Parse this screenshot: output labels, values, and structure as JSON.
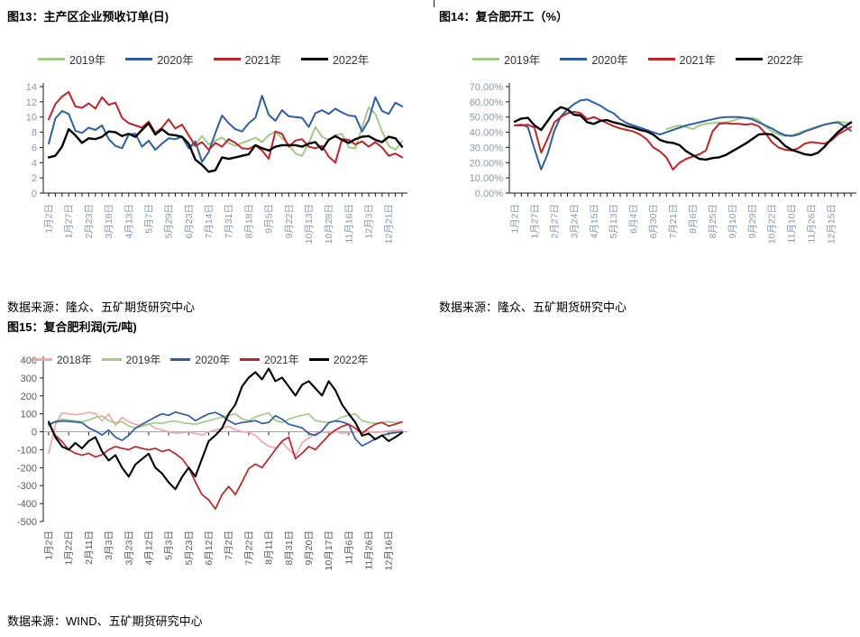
{
  "page": {
    "background": "#ffffff"
  },
  "chart_data": [
    {
      "id": "figure-13",
      "type": "line",
      "title": "图13：主产区企业预收订单(日)",
      "source": "数据来源：隆众、五矿期货研究中心",
      "ylim": [
        0,
        14
      ],
      "ytick": 2,
      "yfmt": "int",
      "tick_color": "#8a98ad",
      "label_every": 3,
      "x_labels": [
        "1月2日",
        "1月27日",
        "2月23日",
        "3月18日",
        "4月13日",
        "5月7日",
        "5月29日",
        "6月23日",
        "7月14日",
        "7月31日",
        "8月18日",
        "9月5日",
        "9月22日",
        "10月13日",
        "10月28日",
        "11月16日",
        "12月3日",
        "12月21日"
      ],
      "legend_position": "top",
      "grid": false,
      "series": [
        {
          "name": "2019年",
          "color": "#A3CB87",
          "width": 2,
          "values": [
            null,
            null,
            null,
            null,
            null,
            null,
            null,
            null,
            null,
            null,
            null,
            null,
            null,
            null,
            null,
            null,
            null,
            null,
            null,
            null,
            null,
            5.9,
            6.4,
            7.5,
            6.4,
            6.9,
            7.3,
            6.6,
            6.2,
            6.6,
            6.9,
            7.3,
            6.7,
            7.6,
            8.1,
            7.2,
            6.4,
            5.2,
            4.9,
            6.6,
            8.7,
            7.4,
            7.0,
            7.6,
            7.8,
            6.0,
            5.9,
            8.6,
            11.3,
            10.4,
            8.1,
            6.2,
            5.7,
            6.8
          ]
        },
        {
          "name": "2020年",
          "color": "#2F5EA3",
          "width": 2,
          "values": [
            6.5,
            9.8,
            10.8,
            10.4,
            8.2,
            7.9,
            8.6,
            8.3,
            8.9,
            7.1,
            6.2,
            5.9,
            7.7,
            7.8,
            6.1,
            6.9,
            5.7,
            6.5,
            7.2,
            7.1,
            7.4,
            5.9,
            6.8,
            4.1,
            5.4,
            7.9,
            10.2,
            9.2,
            8.4,
            8.1,
            9.2,
            9.9,
            12.8,
            10.3,
            9.5,
            10.9,
            10.1,
            10.0,
            9.9,
            8.7,
            10.5,
            10.9,
            10.4,
            11.1,
            10.6,
            10.2,
            10.1,
            8.1,
            9.6,
            12.6,
            10.8,
            10.4,
            11.9,
            11.4
          ]
        },
        {
          "name": "2021年",
          "color": "#C02429",
          "width": 2,
          "values": [
            9.7,
            11.7,
            12.7,
            13.3,
            11.4,
            11.2,
            11.8,
            11.1,
            12.6,
            11.6,
            11.9,
            9.9,
            9.2,
            8.9,
            8.6,
            9.4,
            7.9,
            8.6,
            9.7,
            8.5,
            9.0,
            7.6,
            6.2,
            6.7,
            5.7,
            6.6,
            6.1,
            7.1,
            6.6,
            5.9,
            5.8,
            6.3,
            5.6,
            4.5,
            8.1,
            7.8,
            6.1,
            6.9,
            7.1,
            6.1,
            5.9,
            6.2,
            4.8,
            4.0,
            7.1,
            7.0,
            6.4,
            6.8,
            6.1,
            6.7,
            6.0,
            4.9,
            5.2,
            4.7
          ]
        },
        {
          "name": "2022年",
          "color": "#000000",
          "width": 2.4,
          "values": [
            4.7,
            4.9,
            6.1,
            8.4,
            7.6,
            6.6,
            7.2,
            7.1,
            7.4,
            8.1,
            8.0,
            7.5,
            7.8,
            7.4,
            8.3,
            9.2,
            7.7,
            8.4,
            7.7,
            7.6,
            7.4,
            6.5,
            4.4,
            3.7,
            2.8,
            3.0,
            4.7,
            4.5,
            4.7,
            4.9,
            5.1,
            6.3,
            5.9,
            5.6,
            6.1,
            6.3,
            6.3,
            6.3,
            6.1,
            6.5,
            6.7,
            5.7,
            7.0,
            7.5,
            7.0,
            6.6,
            7.1,
            7.4,
            7.5,
            7.0,
            6.7,
            7.4,
            7.2,
            6.1
          ]
        }
      ]
    },
    {
      "id": "figure-14",
      "type": "line",
      "title": "图14：复合肥开工（%）",
      "source": "数据来源：隆众、五矿期货研究中心",
      "ylim": [
        0,
        70
      ],
      "ytick": 10,
      "yfmt": "p2",
      "tick_color": "#8a98ad",
      "label_every": 3,
      "x_labels": [
        "1月2日",
        "1月27日",
        "2月27日",
        "3月24日",
        "4月15日",
        "5月13日",
        "6月4日",
        "6月30日",
        "7月21日",
        "8月6日",
        "8月25日",
        "9月10日",
        "9月29日",
        "10月22日",
        "11月10日",
        "11月26日",
        "12月15日"
      ],
      "legend_position": "top",
      "grid": false,
      "series": [
        {
          "name": "2019年",
          "color": "#A3CB87",
          "width": 2,
          "values": [
            null,
            null,
            null,
            null,
            null,
            null,
            null,
            null,
            null,
            null,
            null,
            null,
            null,
            null,
            null,
            null,
            null,
            null,
            null,
            null,
            null,
            null,
            null,
            42,
            43.5,
            44.5,
            43.5,
            42,
            44.5,
            45.5,
            46,
            46.5,
            46.5,
            47.5,
            49,
            49.5,
            49.5,
            48,
            44,
            40.5,
            38.5,
            37.5,
            38,
            39.5,
            41,
            42.5,
            44,
            45,
            46,
            47,
            46.5,
            45.5
          ]
        },
        {
          "name": "2020年",
          "color": "#2F5EA3",
          "width": 2,
          "values": [
            44.5,
            45,
            43.5,
            29,
            15.5,
            26,
            41,
            50.5,
            55,
            58.5,
            61,
            61.5,
            59.5,
            57.5,
            54.5,
            52.5,
            48.5,
            46,
            44.5,
            43,
            41.5,
            40,
            38.5,
            40,
            41.5,
            43,
            44.5,
            45.5,
            46.5,
            47.5,
            48.5,
            49.5,
            50,
            50,
            50,
            49.5,
            48.5,
            46.5,
            44.5,
            42.5,
            40,
            38,
            37.5,
            38.5,
            40.5,
            42,
            43.5,
            45,
            46,
            46.5,
            44,
            41
          ]
        },
        {
          "name": "2021年",
          "color": "#C02429",
          "width": 2,
          "values": [
            44.5,
            44.5,
            45,
            43,
            26.5,
            36,
            46.5,
            50,
            52.5,
            53.5,
            52.5,
            48.5,
            50,
            48,
            46,
            44,
            42.5,
            41.5,
            40.5,
            38.5,
            35.5,
            30,
            27.5,
            23.5,
            15.5,
            20,
            22.5,
            24,
            25.5,
            28,
            40.5,
            45.5,
            46,
            45.5,
            45.5,
            45,
            45.5,
            44,
            39.5,
            33.5,
            30,
            28.5,
            28,
            29.5,
            32.5,
            33.5,
            33,
            32.5,
            34.5,
            38.5,
            41,
            43.5
          ]
        },
        {
          "name": "2022年",
          "color": "#000000",
          "width": 2.4,
          "values": [
            47,
            49,
            49.5,
            44.5,
            41.5,
            47.5,
            53.5,
            56.5,
            55,
            51.5,
            51,
            46.5,
            45.5,
            47.5,
            48,
            46.5,
            45.5,
            44,
            43,
            41.5,
            40.5,
            38.5,
            35,
            33.5,
            33,
            31.5,
            27.5,
            25,
            22.5,
            22,
            23,
            23.5,
            25,
            27.5,
            30,
            32.5,
            35.5,
            38.5,
            39,
            38.5,
            35.5,
            31,
            28.5,
            27,
            25.5,
            25,
            26.5,
            30.5,
            35.5,
            40,
            43.5,
            46.5
          ]
        }
      ]
    },
    {
      "id": "figure-15",
      "type": "line",
      "title": "图15：复合肥利润(元/吨)",
      "source": "数据来源：WIND、五矿期货研究中心",
      "ylim": [
        -500,
        400
      ],
      "ytick": 100,
      "yfmt": "int",
      "tick_color": "#595959",
      "label_every": 3,
      "x_labels": [
        "1月2日",
        "1月22日",
        "2月11日",
        "3月3日",
        "3月23日",
        "4月12日",
        "5月3日",
        "5月23日",
        "6月12日",
        "7月2日",
        "7月22日",
        "8月11日",
        "8月31日",
        "9月20日",
        "10月17日",
        "11月6日",
        "11月26日",
        "12月16日"
      ],
      "legend_position": "top",
      "grid": false,
      "zero_axis_color": "#A6A6A6",
      "series": [
        {
          "name": "2018年",
          "color": "#F2A8AE",
          "width": 1.7,
          "values": [
            -120,
            40,
            105,
            100,
            95,
            100,
            108,
            102,
            60,
            100,
            35,
            80,
            55,
            40,
            35,
            45,
            20,
            10,
            0,
            -8,
            -5,
            0,
            -10,
            -18,
            0,
            10,
            20,
            30,
            12,
            0,
            -2,
            -20,
            -55,
            -80,
            -90,
            -60,
            -100,
            -135,
            -60,
            -35,
            -10,
            0,
            -5,
            2,
            -8,
            -5,
            0,
            5,
            0,
            -5,
            0,
            5,
            8,
            10
          ]
        },
        {
          "name": "2019年",
          "color": "#A3CB87",
          "width": 1.7,
          "values": [
            30,
            60,
            70,
            66,
            60,
            56,
            66,
            80,
            88,
            62,
            50,
            56,
            32,
            22,
            30,
            42,
            50,
            46,
            56,
            60,
            50,
            46,
            42,
            52,
            62,
            72,
            82,
            92,
            100,
            72,
            62,
            82,
            95,
            105,
            62,
            52,
            70,
            82,
            92,
            100,
            62,
            56,
            52,
            62,
            82,
            92,
            100,
            62,
            52,
            46,
            52,
            56,
            50,
            55
          ]
        },
        {
          "name": "2020年",
          "color": "#2F5EA3",
          "width": 1.7,
          "values": [
            40,
            55,
            60,
            58,
            55,
            50,
            22,
            5,
            -18,
            10,
            -30,
            -48,
            -20,
            20,
            42,
            62,
            82,
            100,
            92,
            110,
            100,
            90,
            62,
            82,
            100,
            108,
            90,
            62,
            42,
            52,
            56,
            62,
            46,
            52,
            90,
            70,
            42,
            32,
            22,
            -10,
            -20,
            5,
            50,
            60,
            55,
            42,
            -40,
            -78,
            -60,
            -40,
            -20,
            -10,
            -5,
            0
          ]
        },
        {
          "name": "2021年",
          "color": "#C02429",
          "width": 1.7,
          "values": [
            50,
            -20,
            -55,
            -100,
            -120,
            -130,
            -120,
            -140,
            -128,
            -100,
            -82,
            -92,
            -100,
            -82,
            -92,
            -100,
            -92,
            -110,
            -100,
            -122,
            -150,
            -200,
            -280,
            -350,
            -380,
            -430,
            -350,
            -305,
            -350,
            -280,
            -205,
            -180,
            -200,
            -150,
            -100,
            -52,
            -30,
            -150,
            -120,
            -82,
            -100,
            -60,
            -20,
            10,
            30,
            42,
            20,
            -10,
            20,
            42,
            52,
            32,
            42,
            55
          ]
        },
        {
          "name": "2022年",
          "color": "#000000",
          "width": 2.1,
          "values": [
            55,
            -30,
            -82,
            -100,
            -62,
            -92,
            -52,
            -30,
            -110,
            -160,
            -130,
            -200,
            -250,
            -182,
            -152,
            -122,
            -200,
            -232,
            -282,
            -320,
            -252,
            -200,
            -250,
            -150,
            -52,
            -20,
            20,
            100,
            152,
            252,
            302,
            332,
            292,
            352,
            282,
            302,
            252,
            202,
            262,
            282,
            242,
            202,
            282,
            232,
            152,
            100,
            52,
            -22,
            -10,
            -42,
            -20,
            -52,
            -30,
            -5
          ]
        }
      ]
    }
  ]
}
